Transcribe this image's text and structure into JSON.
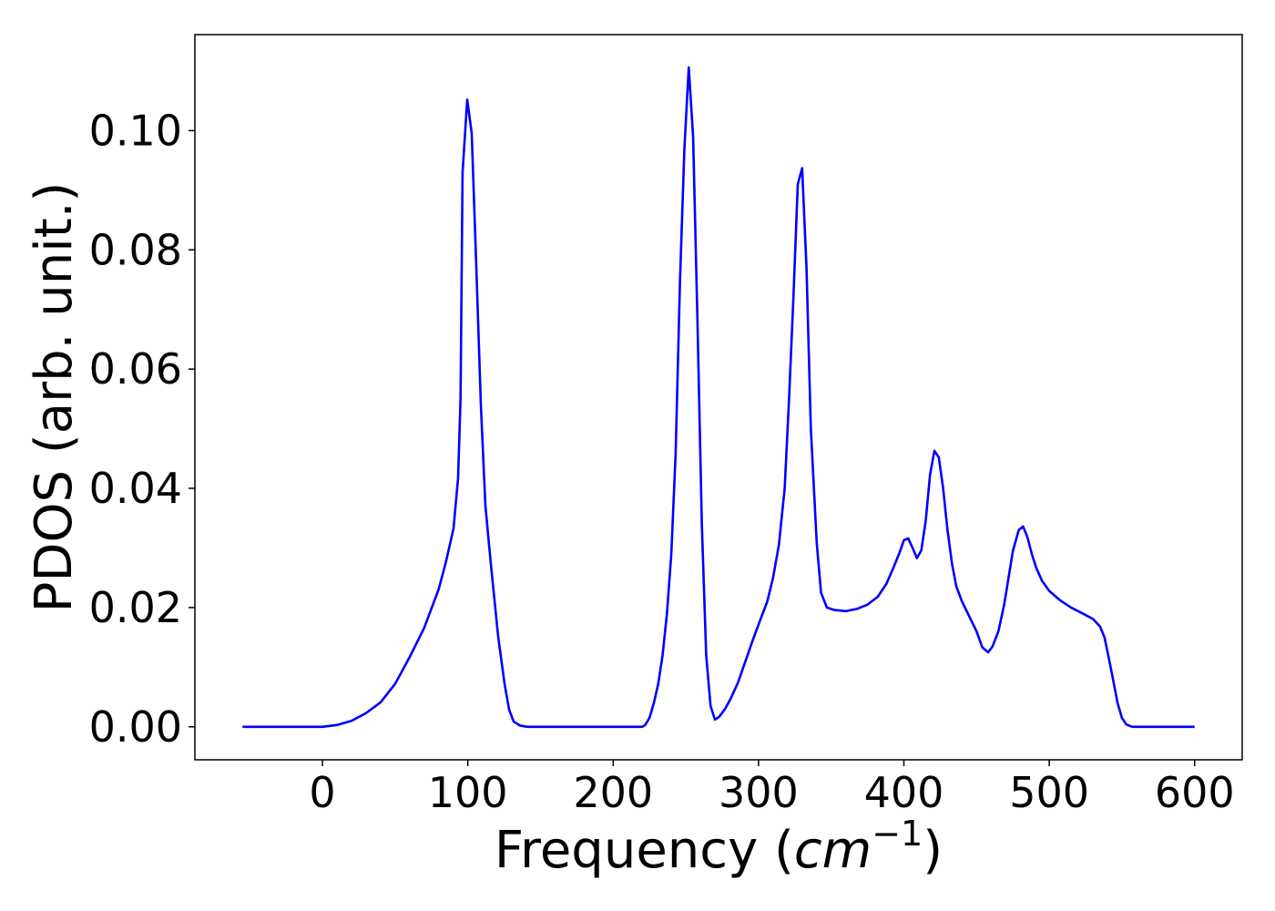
{
  "chart_data": {
    "type": "line",
    "xlabel": [
      "Frequency (",
      "cm",
      "−1",
      ")"
    ],
    "ylabel": "PDOS (arb. unit.)",
    "x": [
      -55,
      0,
      10,
      20,
      30,
      40,
      50,
      60,
      70,
      80,
      85,
      90.2,
      93.3,
      95,
      96.4,
      99.6,
      102.7,
      105.8,
      109,
      112.1,
      115.9,
      120.9,
      125.3,
      128.4,
      131.5,
      135.9,
      140.9,
      220,
      222,
      225,
      228,
      231,
      234,
      237,
      240,
      243,
      246,
      249,
      252,
      255,
      258,
      261,
      264,
      267,
      270,
      273,
      277,
      281,
      286,
      291,
      296,
      301,
      306,
      310,
      314,
      318,
      321,
      324,
      327,
      330,
      333,
      336,
      340,
      343,
      347,
      352,
      360,
      368,
      375,
      382,
      388,
      393,
      397,
      400,
      403,
      406,
      409,
      412,
      415,
      418,
      421,
      424,
      427,
      430,
      433,
      436,
      440,
      445,
      450,
      454,
      458,
      461,
      465,
      469,
      472,
      475,
      479,
      482,
      485,
      488,
      491,
      495,
      500,
      507,
      515,
      523,
      530,
      535,
      538,
      541,
      544,
      547,
      550,
      553,
      557,
      600
    ],
    "series": [
      {
        "name": "PDOS",
        "color": "#0000ff",
        "values": [
          0,
          0,
          0.0003,
          0.001,
          0.0023,
          0.0041,
          0.0072,
          0.0117,
          0.0166,
          0.0231,
          0.0277,
          0.0333,
          0.0417,
          0.055,
          0.093,
          0.1052,
          0.0995,
          0.0775,
          0.0539,
          0.0371,
          0.0272,
          0.0151,
          0.0072,
          0.0029,
          0.0009,
          0.0002,
          0,
          0,
          0.0003,
          0.0015,
          0.004,
          0.0072,
          0.012,
          0.019,
          0.029,
          0.046,
          0.075,
          0.097,
          0.1106,
          0.099,
          0.068,
          0.034,
          0.012,
          0.0035,
          0.0012,
          0.0017,
          0.003,
          0.0048,
          0.0075,
          0.011,
          0.0145,
          0.0178,
          0.021,
          0.025,
          0.0305,
          0.04,
          0.055,
          0.072,
          0.091,
          0.0937,
          0.077,
          0.05,
          0.031,
          0.0225,
          0.02,
          0.0196,
          0.0194,
          0.0198,
          0.0205,
          0.0218,
          0.024,
          0.0268,
          0.0292,
          0.0313,
          0.0316,
          0.03,
          0.0283,
          0.0296,
          0.0345,
          0.0423,
          0.0463,
          0.0452,
          0.04,
          0.033,
          0.0275,
          0.0236,
          0.021,
          0.0185,
          0.016,
          0.0133,
          0.0125,
          0.0135,
          0.016,
          0.0205,
          0.025,
          0.0295,
          0.033,
          0.0336,
          0.0318,
          0.029,
          0.0267,
          0.0245,
          0.0228,
          0.0213,
          0.02,
          0.019,
          0.0181,
          0.0168,
          0.015,
          0.0115,
          0.0078,
          0.004,
          0.0015,
          0.0004,
          0,
          0
        ]
      }
    ],
    "xlim": [
      -87.75,
      632.75
    ],
    "ylim": [
      -0.00553,
      0.1161
    ],
    "xticks": [
      0,
      100,
      200,
      300,
      400,
      500,
      600
    ],
    "yticks": [
      {
        "value": 0,
        "label": "0.00"
      },
      0.02,
      0.04,
      0.06,
      0.08,
      {
        "value": 0.1,
        "label": "0.10"
      }
    ]
  }
}
